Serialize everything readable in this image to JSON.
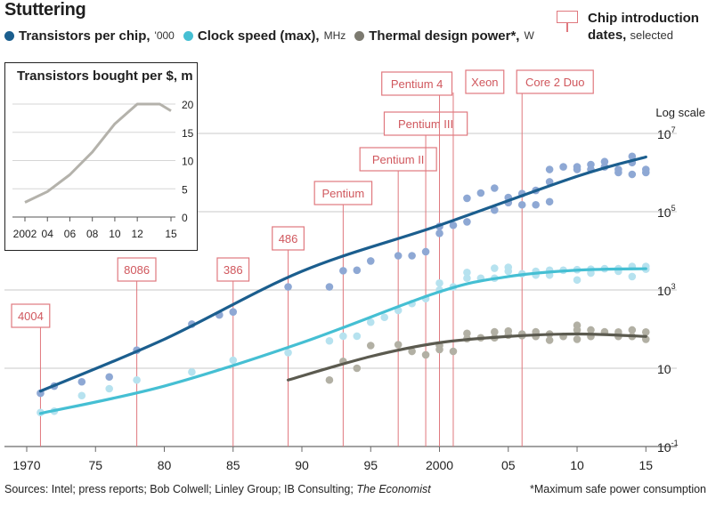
{
  "title": "Stuttering",
  "legend": [
    {
      "label": "Transistors per chip,",
      "unit": "'000",
      "color": "#1b5e8e"
    },
    {
      "label": "Clock speed (max),",
      "unit": "MHz",
      "color": "#45bfd3"
    },
    {
      "label": "Thermal design power*,",
      "unit": "W",
      "color": "#7c7a70"
    }
  ],
  "chip_legend": {
    "line1": "Chip introduction",
    "line2": "dates,",
    "line2_small": "selected"
  },
  "footer_sources": "Sources: Intel; press reports; Bob Colwell; Linley Group; IB Consulting; The Economist",
  "footer_note": "*Maximum safe power consumption",
  "colors": {
    "transistors_line": "#1b5e8e",
    "transistors_dots": "#8ea8d4",
    "clock_line": "#45bfd3",
    "clock_dots": "#b6e2ef",
    "power_line": "#5b5a4f",
    "power_dots": "#b2b0a4",
    "chip_box": "#e0787e",
    "grid": "#c9c9c9"
  },
  "chart_data": [
    {
      "type": "scatter",
      "title": "",
      "scale_label": "Log scale",
      "y_scale": "log",
      "ylim": [
        0.1,
        10000000
      ],
      "xlim": [
        1970,
        2015.5
      ],
      "x_ticks": [
        {
          "value": 1970,
          "label": "1970"
        },
        {
          "value": 1975,
          "label": "75"
        },
        {
          "value": 1980,
          "label": "80"
        },
        {
          "value": 1985,
          "label": "85"
        },
        {
          "value": 1990,
          "label": "90"
        },
        {
          "value": 1995,
          "label": "95"
        },
        {
          "value": 2000,
          "label": "2000"
        },
        {
          "value": 2005,
          "label": "05"
        },
        {
          "value": 2010,
          "label": "10"
        },
        {
          "value": 2015,
          "label": "15"
        }
      ],
      "y_ticks": [
        {
          "value": 0.1,
          "base": "10",
          "exp": "-1"
        },
        {
          "value": 10,
          "base": "10",
          "exp": ""
        },
        {
          "value": 1000,
          "base": "10",
          "exp": "3"
        },
        {
          "value": 100000,
          "base": "10",
          "exp": "5"
        },
        {
          "value": 10000000,
          "base": "10",
          "exp": "7"
        }
      ],
      "chips": [
        {
          "name": "4004",
          "year": 1971
        },
        {
          "name": "8086",
          "year": 1978
        },
        {
          "name": "386",
          "year": 1985
        },
        {
          "name": "486",
          "year": 1989
        },
        {
          "name": "Pentium",
          "year": 1993
        },
        {
          "name": "Pentium II",
          "year": 1997
        },
        {
          "name": "Pentium III",
          "year": 1999
        },
        {
          "name": "Pentium 4",
          "year": 2000
        },
        {
          "name": "Xeon",
          "year": 2001
        },
        {
          "name": "Core 2 Duo",
          "year": 2006
        }
      ],
      "series": [
        {
          "key": "transistors",
          "trend": [
            [
              1971,
              2.6
            ],
            [
              1980,
              55
            ],
            [
              1990,
              3000
            ],
            [
              2000,
              45000
            ],
            [
              2010,
              800000
            ],
            [
              2015,
              2500000
            ]
          ],
          "points": [
            [
              1971,
              2.3
            ],
            [
              1972,
              3.5
            ],
            [
              1974,
              4.5
            ],
            [
              1976,
              6
            ],
            [
              1978,
              29
            ],
            [
              1982,
              134
            ],
            [
              1984,
              230
            ],
            [
              1985,
              275
            ],
            [
              1989,
              1200
            ],
            [
              1992,
              1200
            ],
            [
              1993,
              3100
            ],
            [
              1994,
              3200
            ],
            [
              1995,
              5500
            ],
            [
              1997,
              7500
            ],
            [
              1998,
              7500
            ],
            [
              1999,
              9500
            ],
            [
              2000,
              42000
            ],
            [
              2000,
              28000
            ],
            [
              2001,
              45000
            ],
            [
              2002,
              55000
            ],
            [
              2002,
              220000
            ],
            [
              2003,
              300000
            ],
            [
              2004,
              400000
            ],
            [
              2004,
              110000
            ],
            [
              2005,
              170000
            ],
            [
              2005,
              230000
            ],
            [
              2006,
              290000
            ],
            [
              2006,
              150000
            ],
            [
              2007,
              150000
            ],
            [
              2007,
              350000
            ],
            [
              2008,
              580000
            ],
            [
              2008,
              180000
            ],
            [
              2008,
              1200000
            ],
            [
              2009,
              1400000
            ],
            [
              2010,
              1200000
            ],
            [
              2010,
              1400000
            ],
            [
              2011,
              1200000
            ],
            [
              2011,
              1600000
            ],
            [
              2012,
              1900000
            ],
            [
              2012,
              1400000
            ],
            [
              2013,
              1000000
            ],
            [
              2013,
              1200000
            ],
            [
              2014,
              2600000
            ],
            [
              2014,
              1800000
            ],
            [
              2014,
              900000
            ],
            [
              2015,
              1200000
            ],
            [
              2015,
              1000000
            ]
          ]
        },
        {
          "key": "clock",
          "trend": [
            [
              1971,
              0.7
            ],
            [
              1980,
              3.5
            ],
            [
              1990,
              45
            ],
            [
              2000,
              900
            ],
            [
              2005,
              2200
            ],
            [
              2010,
              3200
            ],
            [
              2015,
              3500
            ]
          ],
          "points": [
            [
              1971,
              0.74
            ],
            [
              1972,
              0.8
            ],
            [
              1974,
              2
            ],
            [
              1976,
              3
            ],
            [
              1978,
              5
            ],
            [
              1982,
              8
            ],
            [
              1985,
              16
            ],
            [
              1989,
              25
            ],
            [
              1992,
              50
            ],
            [
              1993,
              66
            ],
            [
              1994,
              66
            ],
            [
              1995,
              150
            ],
            [
              1996,
              200
            ],
            [
              1997,
              300
            ],
            [
              1998,
              450
            ],
            [
              1999,
              600
            ],
            [
              2000,
              1500
            ],
            [
              2000,
              1000
            ],
            [
              2001,
              1200
            ],
            [
              2002,
              2800
            ],
            [
              2002,
              2000
            ],
            [
              2003,
              2000
            ],
            [
              2004,
              3600
            ],
            [
              2004,
              2000
            ],
            [
              2005,
              3800
            ],
            [
              2005,
              3000
            ],
            [
              2006,
              2600
            ],
            [
              2007,
              3000
            ],
            [
              2007,
              2400
            ],
            [
              2008,
              3200
            ],
            [
              2008,
              2400
            ],
            [
              2009,
              3200
            ],
            [
              2010,
              3300
            ],
            [
              2010,
              1800
            ],
            [
              2011,
              3400
            ],
            [
              2011,
              2700
            ],
            [
              2012,
              3500
            ],
            [
              2013,
              3500
            ],
            [
              2013,
              3000
            ],
            [
              2014,
              4000
            ],
            [
              2014,
              2200
            ],
            [
              2015,
              4000
            ],
            [
              2015,
              3400
            ]
          ]
        },
        {
          "key": "power",
          "trend": [
            [
              1989,
              5
            ],
            [
              1995,
              20
            ],
            [
              2000,
              45
            ],
            [
              2005,
              65
            ],
            [
              2010,
              75
            ],
            [
              2015,
              65
            ]
          ],
          "points": [
            [
              1992,
              5
            ],
            [
              1993,
              15
            ],
            [
              1994,
              10
            ],
            [
              1995,
              38
            ],
            [
              1997,
              40
            ],
            [
              1998,
              27
            ],
            [
              1999,
              22
            ],
            [
              2000,
              38
            ],
            [
              2000,
              30
            ],
            [
              2001,
              27
            ],
            [
              2002,
              78
            ],
            [
              2002,
              57
            ],
            [
              2003,
              60
            ],
            [
              2004,
              85
            ],
            [
              2004,
              60
            ],
            [
              2005,
              89
            ],
            [
              2005,
              70
            ],
            [
              2006,
              75
            ],
            [
              2006,
              68
            ],
            [
              2007,
              65
            ],
            [
              2007,
              85
            ],
            [
              2008,
              75
            ],
            [
              2008,
              52
            ],
            [
              2009,
              65
            ],
            [
              2010,
              95
            ],
            [
              2010,
              125
            ],
            [
              2010,
              55
            ],
            [
              2011,
              95
            ],
            [
              2011,
              65
            ],
            [
              2012,
              85
            ],
            [
              2013,
              84
            ],
            [
              2013,
              65
            ],
            [
              2014,
              95
            ],
            [
              2014,
              65
            ],
            [
              2015,
              84
            ],
            [
              2015,
              55
            ]
          ]
        }
      ]
    },
    {
      "type": "line",
      "title": "Transistors bought per $, m",
      "xlim": [
        2002,
        2015
      ],
      "ylim": [
        0,
        20
      ],
      "x_ticks": [
        {
          "value": 2002,
          "label": "2002"
        },
        {
          "value": 2004,
          "label": "04"
        },
        {
          "value": 2006,
          "label": "06"
        },
        {
          "value": 2008,
          "label": "08"
        },
        {
          "value": 2010,
          "label": "10"
        },
        {
          "value": 2012,
          "label": "12"
        },
        {
          "value": 2015,
          "label": "15"
        }
      ],
      "y_ticks": [
        0,
        5,
        10,
        15,
        20
      ],
      "x": [
        2002,
        2004,
        2006,
        2008,
        2010,
        2012,
        2014,
        2015
      ],
      "values": [
        2.6,
        4.5,
        7.5,
        11.5,
        16.5,
        20,
        20,
        18.8
      ],
      "color": "#b4b2ab"
    }
  ]
}
